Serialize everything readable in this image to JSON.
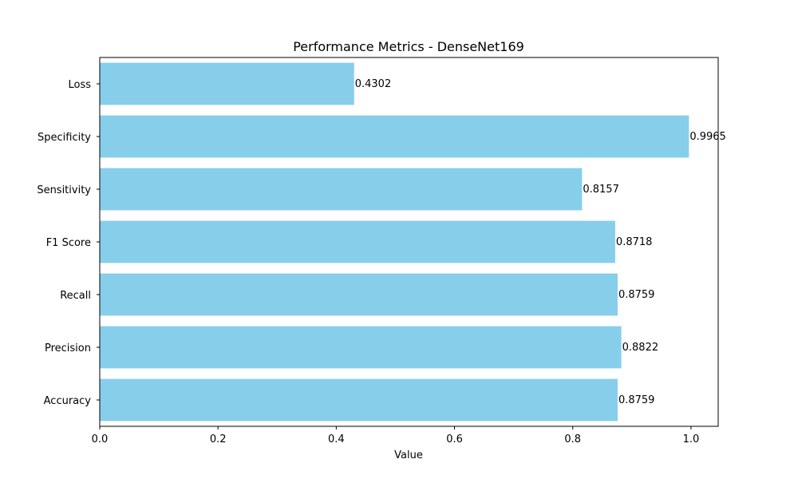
{
  "chart_data": {
    "type": "bar",
    "orientation": "horizontal",
    "title": "Performance Metrics - DenseNet169",
    "xlabel": "Value",
    "ylabel": "",
    "categories": [
      "Accuracy",
      "Precision",
      "Recall",
      "F1 Score",
      "Sensitivity",
      "Specificity",
      "Loss"
    ],
    "values": [
      0.8759,
      0.8822,
      0.8759,
      0.8718,
      0.8157,
      0.9965,
      0.4302
    ],
    "value_labels": [
      "0.8759",
      "0.8822",
      "0.8759",
      "0.8718",
      "0.8157",
      "0.9965",
      "0.4302"
    ],
    "xlim": [
      0,
      1.046
    ],
    "xticks": [
      0.0,
      0.2,
      0.4,
      0.6,
      0.8,
      1.0
    ],
    "xtick_labels": [
      "0.0",
      "0.2",
      "0.4",
      "0.6",
      "0.8",
      "1.0"
    ],
    "grid": false,
    "bar_color": "#87ceeb"
  }
}
